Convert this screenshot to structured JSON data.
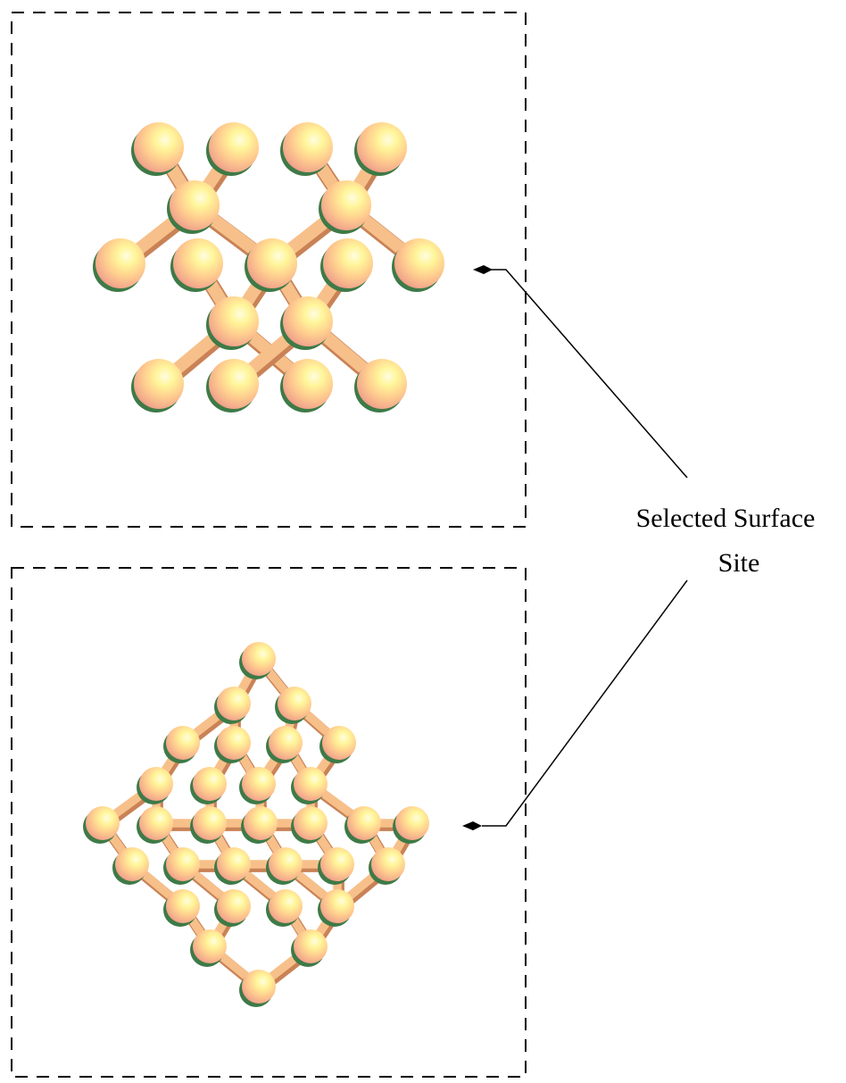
{
  "annotation": {
    "label_line1": "Selected Surface",
    "label_line2": "Site"
  },
  "colors": {
    "atom_highlight": "#fffbb0",
    "atom_mid": "#ffc986",
    "atom_edge": "#f0a488",
    "atom_shadow": "#3e7a47",
    "bond": "#f7c08a",
    "bond_dark": "#d98f5c",
    "frame": "#000000"
  },
  "panels": [
    {
      "name": "top-structure-panel",
      "description_visible": false
    },
    {
      "name": "bottom-structure-panel",
      "description_visible": false
    }
  ]
}
